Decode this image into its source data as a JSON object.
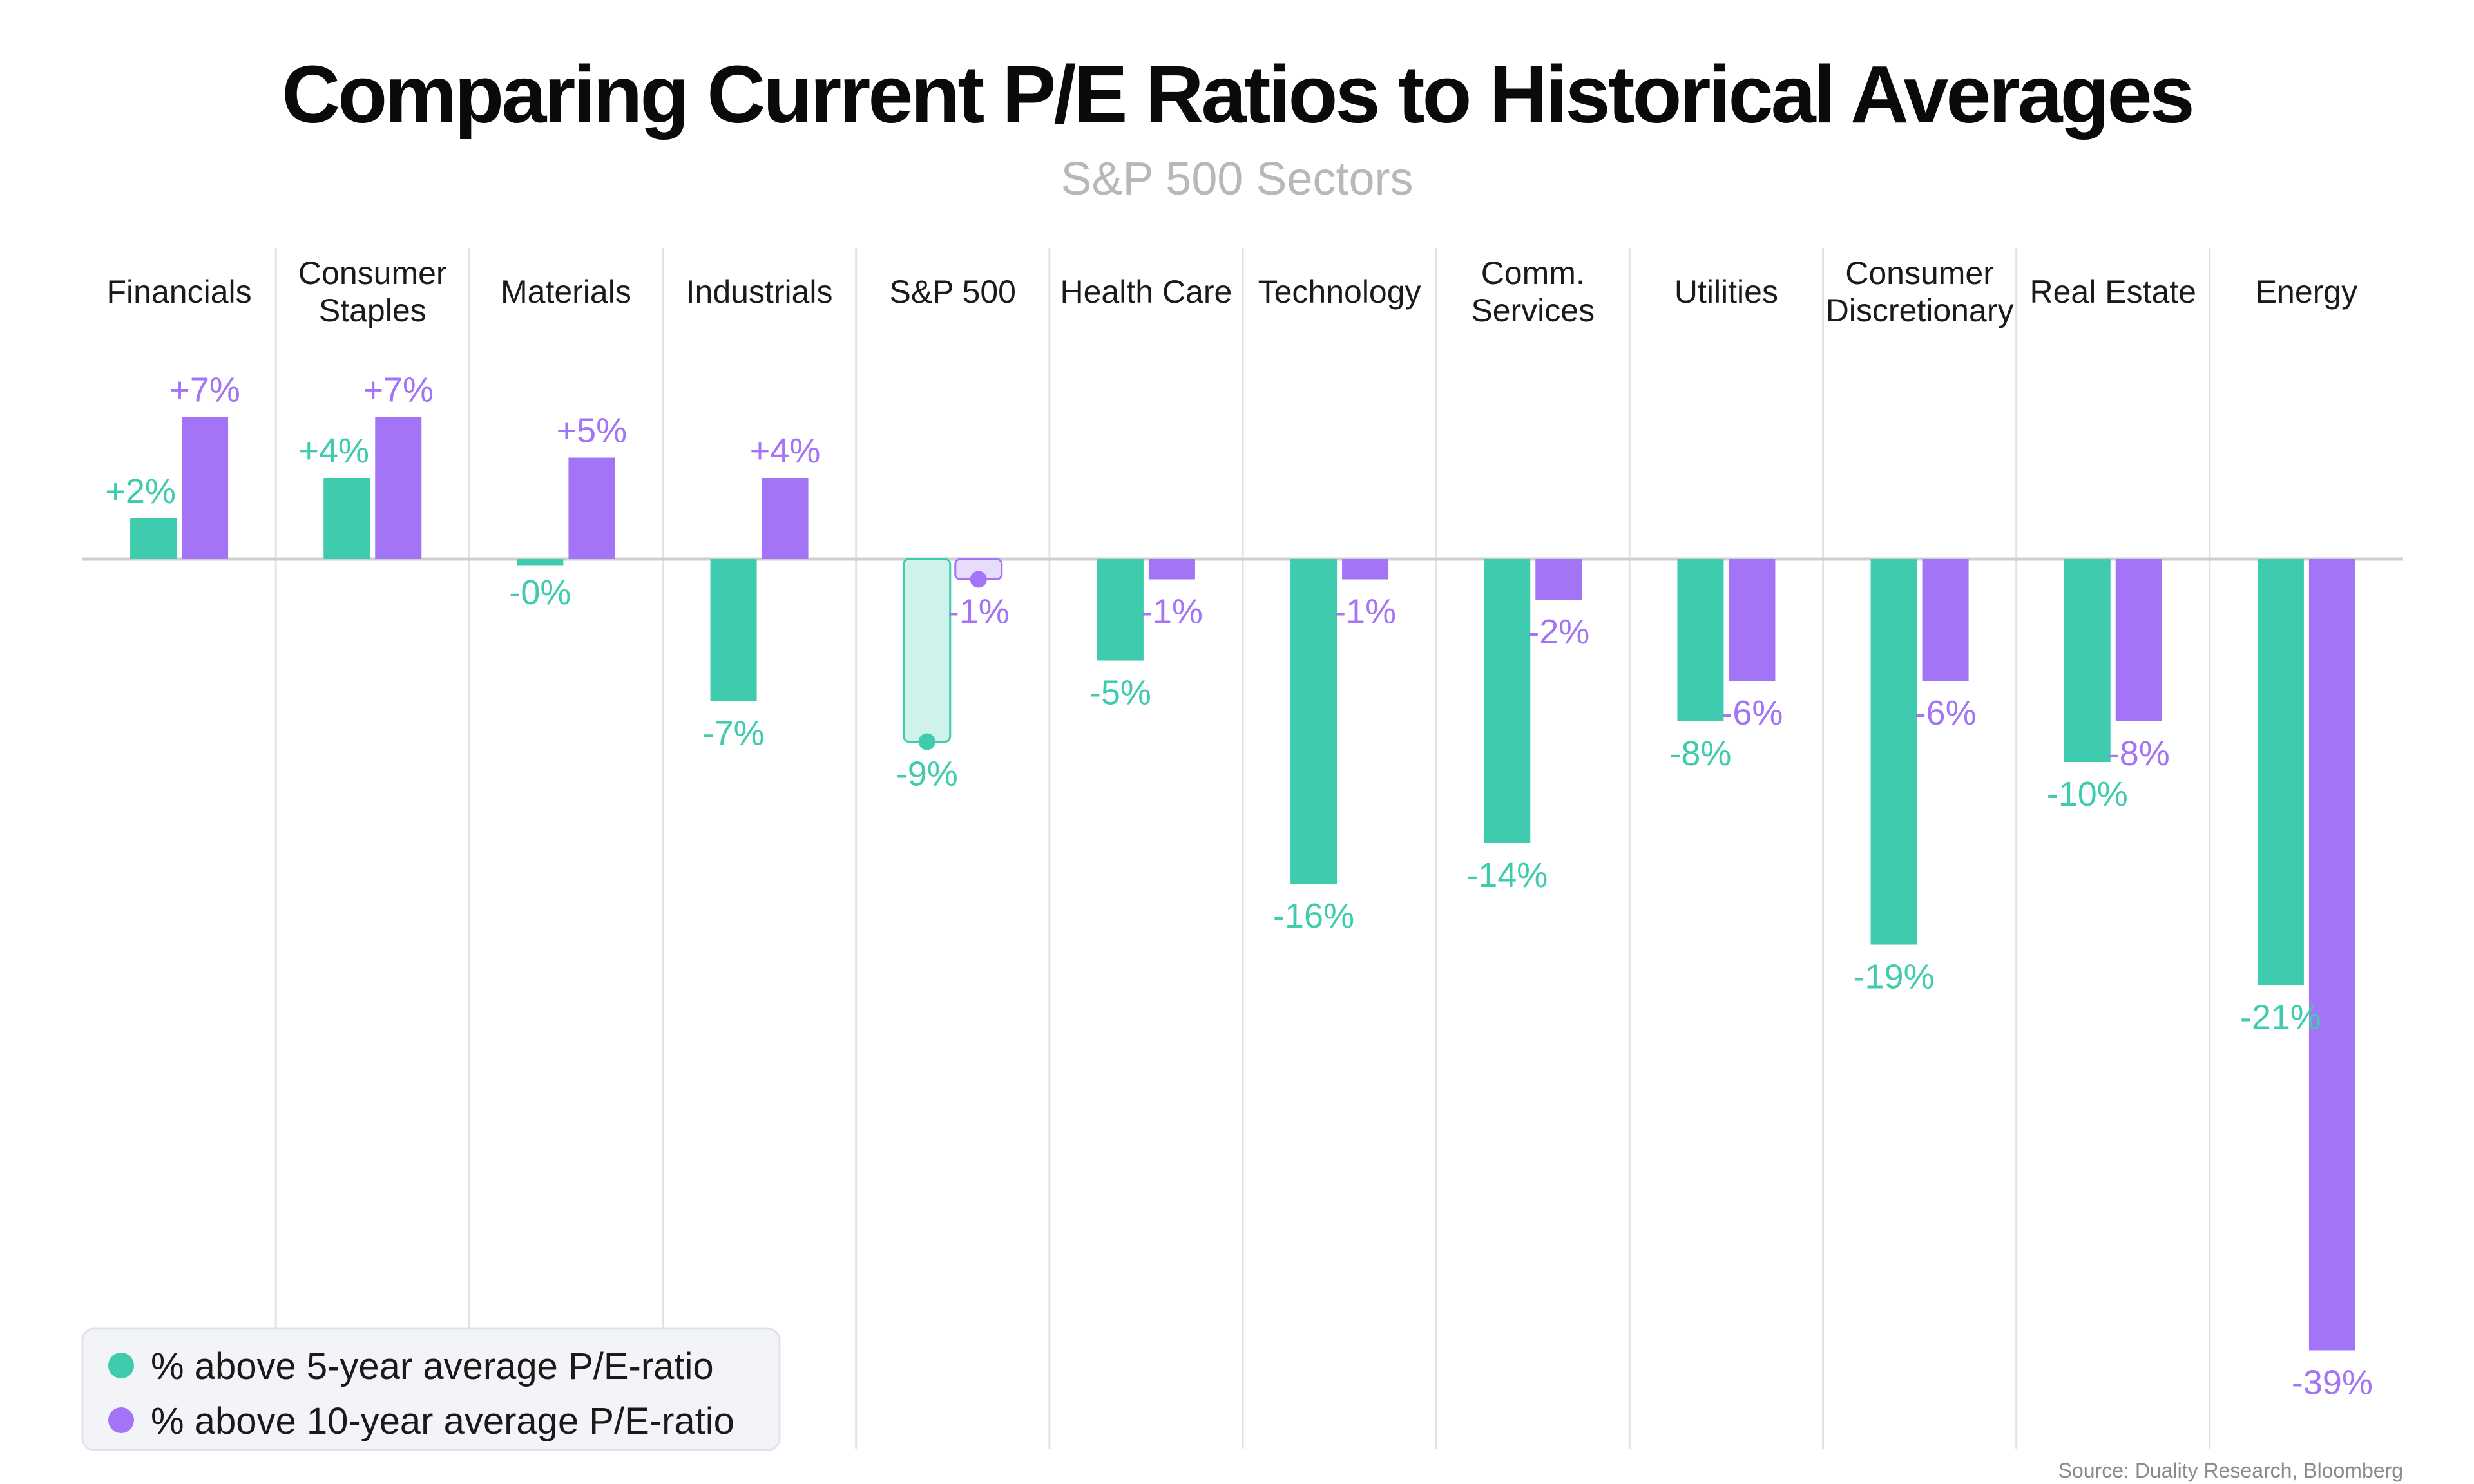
{
  "colors": {
    "series_5y": "#3ecbae",
    "series_10y": "#a374f5",
    "highlight_5y_fill": "#cff2ea",
    "highlight_10y_fill": "#e7dcfb",
    "title": "#0a0a0a",
    "subtitle": "#b8b8b8",
    "category": "#1a1a1a",
    "source": "#8a8a8a",
    "grid": "#e2e2e2",
    "zero_line": "#cfcfcf",
    "legend_bg": "#f3f4f7",
    "legend_border": "#e1e3ea"
  },
  "footer": {
    "source": "Source: Duality Research, Bloomberg"
  },
  "chart_data": {
    "type": "bar",
    "title": "Comparing Current P/E Ratios to Historical Averages",
    "subtitle": "S&P 500 Sectors",
    "categories": [
      [
        "Financials"
      ],
      [
        "Consumer",
        "Staples"
      ],
      [
        "Materials"
      ],
      [
        "Industrials"
      ],
      [
        "S&P 500"
      ],
      [
        "Health Care"
      ],
      [
        "Technology"
      ],
      [
        "Comm.",
        "Services"
      ],
      [
        "Utilities"
      ],
      [
        "Consumer",
        "Discretionary"
      ],
      [
        "Real Estate"
      ],
      [
        "Energy"
      ]
    ],
    "highlight_category_index": 4,
    "series": [
      {
        "name": "% above 5-year average P/E-ratio",
        "values": [
          2,
          4,
          -0.3,
          -7,
          -9,
          -5,
          -16,
          -14,
          -8,
          -19,
          -10,
          -21
        ],
        "labels": [
          "+2%",
          "+4%",
          "-0%",
          "-7%",
          "-9%",
          "-5%",
          "-16%",
          "-14%",
          "-8%",
          "-19%",
          "-10%",
          "-21%"
        ]
      },
      {
        "name": "% above 10-year average P/E-ratio",
        "values": [
          7,
          7,
          5,
          4,
          -1,
          -1,
          -1,
          -2,
          -6,
          -6,
          -8,
          -39
        ],
        "labels": [
          "+7%",
          "+7%",
          "+5%",
          "+4%",
          "-1%",
          "-1%",
          "-1%",
          "-2%",
          "-6%",
          "-6%",
          "-8%",
          "-39%"
        ]
      }
    ],
    "ylim": [
      -42,
      8
    ],
    "grid": "vertical separators between categories",
    "legend_position": "bottom-left"
  }
}
